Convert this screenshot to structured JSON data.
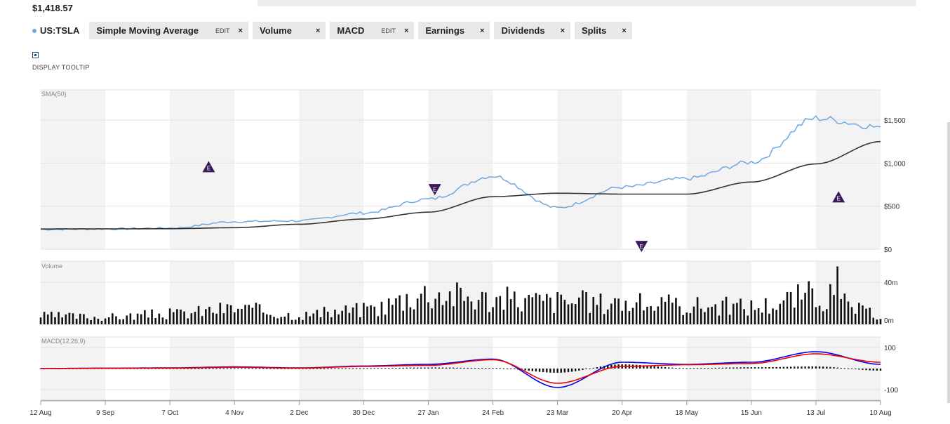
{
  "header": {
    "price": "$1,418.57"
  },
  "indicators": [
    {
      "label": "US:TSLA",
      "symbol": true
    },
    {
      "label": "Simple Moving Average",
      "edit": "EDIT",
      "close": "×"
    },
    {
      "label": "Volume",
      "close": "×"
    },
    {
      "label": "MACD",
      "edit": "EDIT",
      "close": "×"
    },
    {
      "label": "Earnings",
      "close": "×"
    },
    {
      "label": "Dividends",
      "close": "×"
    },
    {
      "label": "Splits",
      "close": "×"
    }
  ],
  "tooltip": {
    "label": "DISPLAY TOOLTIP",
    "checked": true
  },
  "colors": {
    "price": "#6fa8e0",
    "sma": "#333333",
    "macd": "#0000ee",
    "signal": "#ee0000",
    "earnings": "#3a1a5a"
  },
  "chart_data": [
    {
      "type": "line",
      "panel": "price",
      "label": "SMA(50)",
      "x": [
        "12 Aug",
        "9 Sep",
        "7 Oct",
        "4 Nov",
        "2 Dec",
        "30 Dec",
        "27 Jan",
        "24 Feb",
        "23 Mar",
        "20 Apr",
        "18 May",
        "15 Jun",
        "13 Jul",
        "10 Aug"
      ],
      "yticks": [
        "$0",
        "$500",
        "$1,000",
        "$1,500"
      ],
      "ylim": [
        0,
        1850
      ],
      "series": [
        {
          "name": "US:TSLA",
          "values": [
            230,
            235,
            245,
            320,
            330,
            420,
            580,
            850,
            480,
            720,
            820,
            1010,
            1520,
            1420
          ]
        },
        {
          "name": "SMA(50)",
          "values": [
            235,
            236,
            238,
            250,
            290,
            350,
            430,
            610,
            650,
            640,
            640,
            780,
            990,
            1250
          ]
        }
      ],
      "earnings": [
        {
          "x_index": 2.6,
          "value": 950,
          "label": "E",
          "direction": "up"
        },
        {
          "x_index": 6.1,
          "value": 700,
          "label": "E",
          "direction": "down"
        },
        {
          "x_index": 9.3,
          "value": 40,
          "label": "E",
          "direction": "down"
        },
        {
          "x_index": 12.35,
          "value": 600,
          "label": "E",
          "direction": "up"
        }
      ]
    },
    {
      "type": "bar",
      "panel": "volume",
      "label": "Volume",
      "x": [
        "12 Aug",
        "9 Sep",
        "7 Oct",
        "4 Nov",
        "2 Dec",
        "30 Dec",
        "27 Jan",
        "24 Feb",
        "23 Mar",
        "20 Apr",
        "18 May",
        "15 Jun",
        "13 Jul",
        "10 Aug"
      ],
      "yticks": [
        "0m",
        "40m"
      ],
      "ylim": [
        0,
        60
      ],
      "values": [
        8,
        7,
        10,
        15,
        9,
        14,
        30,
        24,
        22,
        20,
        18,
        17,
        28,
        9
      ]
    },
    {
      "type": "line",
      "panel": "macd",
      "label": "MACD(12,26,9)",
      "x": [
        "12 Aug",
        "9 Sep",
        "7 Oct",
        "4 Nov",
        "2 Dec",
        "30 Dec",
        "27 Jan",
        "24 Feb",
        "23 Mar",
        "20 Apr",
        "18 May",
        "15 Jun",
        "13 Jul",
        "10 Aug"
      ],
      "yticks": [
        "-100",
        "100"
      ],
      "ylim": [
        -150,
        150
      ],
      "series": [
        {
          "name": "MACD",
          "values": [
            0,
            2,
            3,
            8,
            3,
            12,
            20,
            45,
            -90,
            30,
            20,
            30,
            80,
            20
          ]
        },
        {
          "name": "Signal",
          "values": [
            0,
            1,
            2,
            6,
            2,
            10,
            15,
            42,
            -70,
            10,
            18,
            24,
            70,
            30
          ]
        }
      ],
      "histogram": [
        0,
        1,
        1,
        2,
        1,
        2,
        5,
        3,
        -20,
        20,
        2,
        6,
        10,
        -10
      ]
    }
  ]
}
